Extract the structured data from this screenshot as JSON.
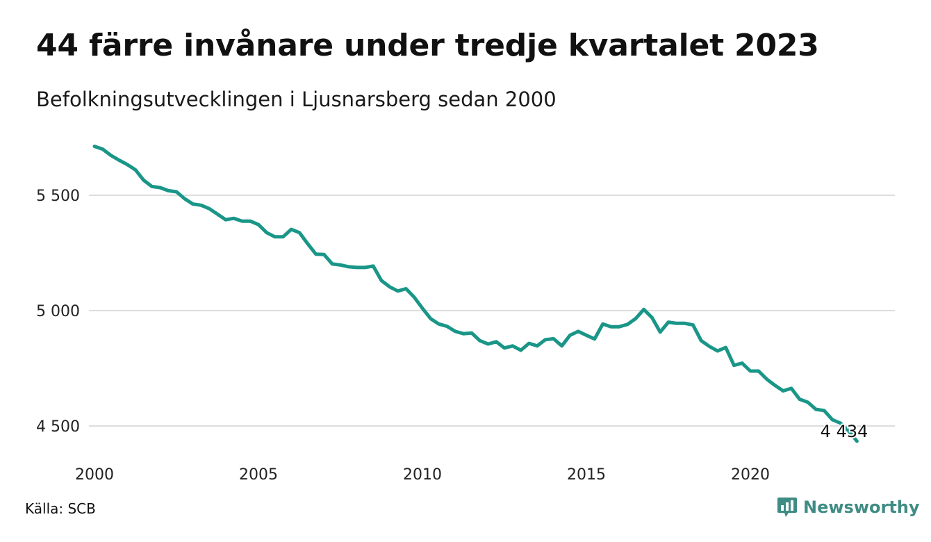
{
  "header": {
    "title": "44 färre invånare under tredje kvartalet 2023",
    "subtitle": "Befolkningsutvecklingen i Ljusnarsberg sedan 2000"
  },
  "footer": {
    "source": "Källa: SCB",
    "brand": "Newsworthy"
  },
  "colors": {
    "line": "#1a9688",
    "grid": "#dddddd",
    "brand": "#3f8c84"
  },
  "chart_data": {
    "type": "line",
    "x_start": 2000,
    "x_step_years": 0.25,
    "xlim": [
      2000,
      2024
    ],
    "ylim": [
      4410,
      5720
    ],
    "x_ticks": [
      2000,
      2005,
      2010,
      2015,
      2020
    ],
    "x_tick_labels": [
      "2000",
      "2005",
      "2010",
      "2015",
      "2020"
    ],
    "y_ticks": [
      4500,
      5000,
      5500
    ],
    "y_tick_labels": [
      "4 500",
      "5 000",
      "5 500"
    ],
    "grid": "horizontal",
    "end_label": "4 434",
    "series": [
      {
        "values": [
          5712,
          5700,
          5673,
          5652,
          5633,
          5610,
          5565,
          5538,
          5533,
          5520,
          5515,
          5485,
          5462,
          5457,
          5442,
          5418,
          5394,
          5400,
          5388,
          5388,
          5373,
          5338,
          5320,
          5320,
          5352,
          5338,
          5290,
          5245,
          5243,
          5202,
          5198,
          5190,
          5187,
          5187,
          5193,
          5130,
          5103,
          5085,
          5095,
          5058,
          5010,
          4965,
          4942,
          4932,
          4910,
          4900,
          4903,
          4870,
          4855,
          4865,
          4838,
          4847,
          4828,
          4858,
          4847,
          4874,
          4878,
          4847,
          4893,
          4910,
          4893,
          4877,
          4942,
          4930,
          4930,
          4940,
          4965,
          5005,
          4970,
          4907,
          4950,
          4945,
          4945,
          4938,
          4870,
          4845,
          4825,
          4840,
          4763,
          4772,
          4738,
          4738,
          4703,
          4676,
          4652,
          4663,
          4616,
          4603,
          4572,
          4567,
          4527,
          4512,
          4478,
          4434
        ]
      }
    ]
  }
}
